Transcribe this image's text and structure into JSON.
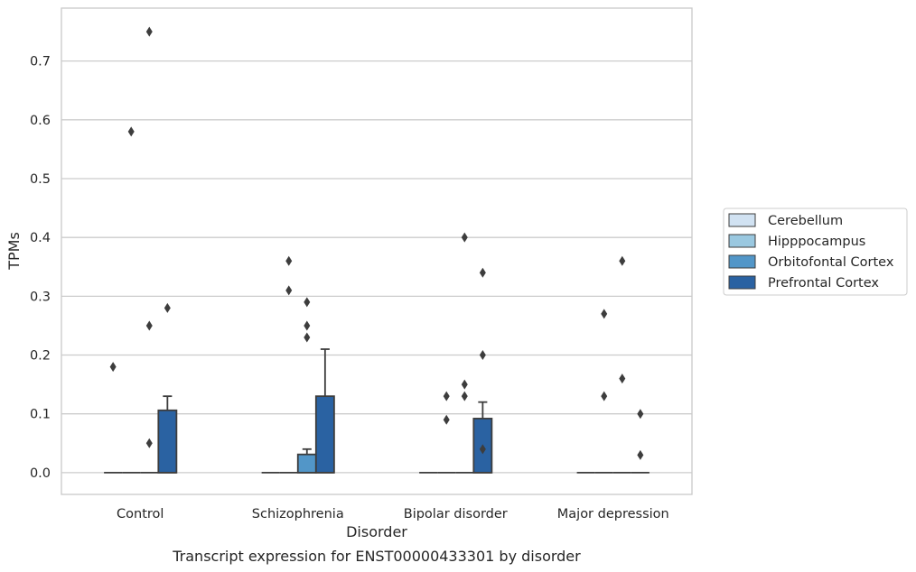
{
  "chart_data": {
    "type": "box",
    "title": "",
    "caption": "Transcript expression for ENST00000433301 by disorder",
    "xlabel": "Disorder",
    "ylabel": "TPMs",
    "ylim": [
      -0.037,
      0.79
    ],
    "yticks": [
      "0.0",
      "0.1",
      "0.2",
      "0.3",
      "0.4",
      "0.5",
      "0.6",
      "0.7"
    ],
    "grid": "horizontal",
    "legend_placement": "right",
    "categories": [
      "Control",
      "Schizophrenia",
      "Bipolar disorder",
      "Major depression"
    ],
    "series": [
      {
        "name": "Cerebellum",
        "color": "#d1e2f2",
        "boxes": [
          {
            "q1": 0,
            "median": 0,
            "q3": 0,
            "whisker_high": 0,
            "outliers": [
              0.18
            ]
          },
          {
            "q1": 0,
            "median": 0,
            "q3": 0,
            "whisker_high": 0,
            "outliers": []
          },
          {
            "q1": 0,
            "median": 0,
            "q3": 0,
            "whisker_high": 0,
            "outliers": []
          },
          {
            "q1": 0,
            "median": 0,
            "q3": 0,
            "whisker_high": 0,
            "outliers": []
          }
        ]
      },
      {
        "name": "Hipppocampus",
        "color": "#9ac8e0",
        "boxes": [
          {
            "q1": 0,
            "median": 0,
            "q3": 0,
            "whisker_high": 0,
            "outliers": [
              0.58
            ]
          },
          {
            "q1": 0,
            "median": 0,
            "q3": 0,
            "whisker_high": 0,
            "outliers": [
              0.36,
              0.31
            ]
          },
          {
            "q1": 0,
            "median": 0,
            "q3": 0,
            "whisker_high": 0,
            "outliers": [
              0.13,
              0.09
            ]
          },
          {
            "q1": 0,
            "median": 0,
            "q3": 0,
            "whisker_high": 0,
            "outliers": [
              0.27,
              0.13
            ]
          }
        ]
      },
      {
        "name": "Orbitofontal Cortex",
        "color": "#5296c8",
        "boxes": [
          {
            "q1": 0,
            "median": 0,
            "q3": 0,
            "whisker_high": 0,
            "outliers": [
              0.75,
              0.25,
              0.05
            ]
          },
          {
            "q1": 0,
            "median": 0,
            "q3": 0.031,
            "whisker_high": 0.04,
            "outliers": [
              0.29,
              0.25,
              0.23
            ]
          },
          {
            "q1": 0,
            "median": 0,
            "q3": 0,
            "whisker_high": 0,
            "outliers": [
              0.4,
              0.15,
              0.13
            ]
          },
          {
            "q1": 0,
            "median": 0,
            "q3": 0,
            "whisker_high": 0,
            "outliers": [
              0.36,
              0.16
            ]
          }
        ]
      },
      {
        "name": "Prefrontal Cortex",
        "color": "#2a62a2",
        "boxes": [
          {
            "q1": 0,
            "median": 0,
            "q3": 0.106,
            "whisker_high": 0.13,
            "outliers": [
              0.28
            ]
          },
          {
            "q1": 0,
            "median": 0,
            "q3": 0.13,
            "whisker_high": 0.21,
            "outliers": []
          },
          {
            "q1": 0,
            "median": 0,
            "q3": 0.092,
            "whisker_high": 0.12,
            "outliers": [
              0.34,
              0.2,
              0.04
            ]
          },
          {
            "q1": 0,
            "median": 0,
            "q3": 0,
            "whisker_high": 0,
            "outliers": [
              0.1,
              0.03
            ]
          }
        ]
      }
    ]
  }
}
